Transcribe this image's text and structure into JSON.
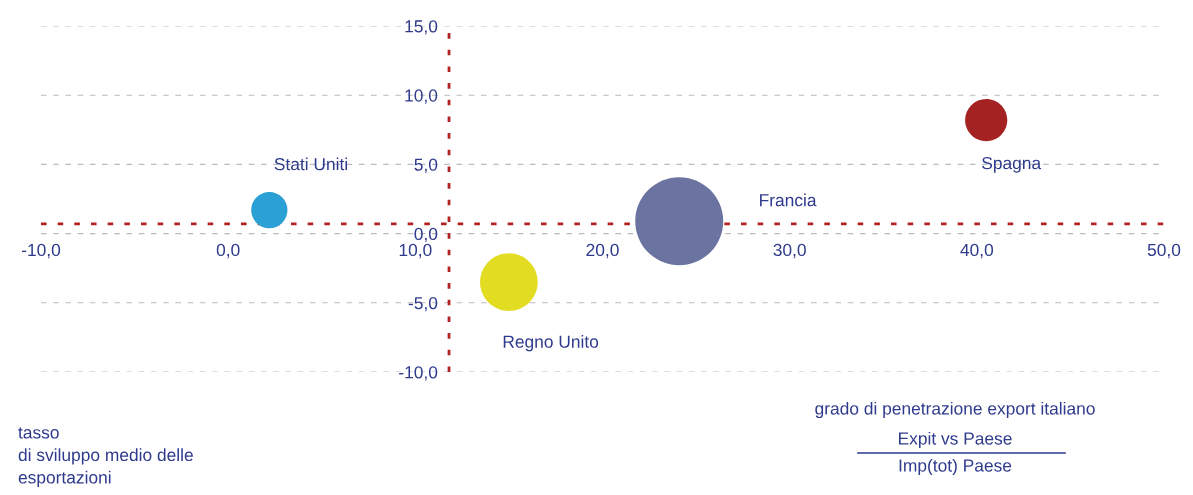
{
  "chart_data": {
    "type": "bubble",
    "xlabel": "grado di penetrazione export italiano",
    "ylabel": "tasso\ndi sviluppo medio delle\nesportazioni",
    "annotations": [
      "Expit vs Paese",
      "Imp(tot) Paese"
    ],
    "series": [
      {
        "name": "Stati Uniti",
        "color": "#2aa0d4",
        "x": [
          2.2
        ],
        "values": [
          1.7
        ],
        "sizes": [
          0.17
        ]
      },
      {
        "name": "Regno Unito",
        "color": "#e2dc22",
        "x": [
          15.0
        ],
        "values": [
          -3.5
        ],
        "sizes": [
          0.43
        ]
      },
      {
        "name": "Francia",
        "color": "#6b73a0",
        "x": [
          24.1
        ],
        "values": [
          0.9
        ],
        "sizes": [
          1
        ]
      },
      {
        "name": "Spagna",
        "color": "#a52222",
        "x": [
          40.5
        ],
        "values": [
          8.2
        ],
        "sizes": [
          0.23
        ]
      }
    ],
    "xlim": [
      -10,
      50
    ],
    "xticks": [
      {
        "value": -10,
        "label": "-10,0"
      },
      {
        "value": 0,
        "label": "0,0"
      },
      {
        "value": 10,
        "label": "10,0"
      },
      {
        "value": 20,
        "label": "20,0"
      },
      {
        "value": 30,
        "label": "30,0"
      },
      {
        "value": 40,
        "label": "40,0"
      },
      {
        "value": 50,
        "label": "50,0"
      }
    ],
    "ylim": [
      -10,
      15
    ],
    "yticks": [
      {
        "value": -10,
        "label": "-10,0"
      },
      {
        "value": -5,
        "label": "-5,0"
      },
      {
        "value": 0,
        "label": "0,0"
      },
      {
        "value": 5,
        "label": "5,0"
      },
      {
        "value": 10,
        "label": "10,0"
      },
      {
        "value": 15,
        "label": "15,0"
      }
    ],
    "ref_lines": [
      {
        "axis": "y",
        "value": 0.7,
        "color": "#b22222",
        "line_style": "dotted"
      },
      {
        "axis": "x",
        "value": 11.8,
        "color": "#b22222",
        "line_style": "dotted"
      }
    ],
    "grid": "y",
    "legend": false
  }
}
